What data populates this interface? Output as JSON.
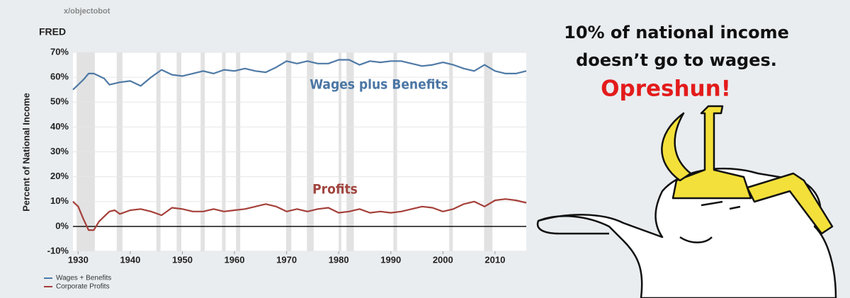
{
  "watermark": "x/objectobot",
  "chart_data": {
    "type": "line",
    "brand": "FRED",
    "y_label": "Percent of National Income",
    "x": [
      1929,
      1930,
      1931,
      1932,
      1933,
      1934,
      1935,
      1936,
      1937,
      1938,
      1940,
      1942,
      1944,
      1946,
      1948,
      1950,
      1952,
      1954,
      1956,
      1958,
      1960,
      1962,
      1964,
      1966,
      1968,
      1970,
      1972,
      1974,
      1976,
      1978,
      1980,
      1982,
      1984,
      1986,
      1988,
      1990,
      1992,
      1994,
      1996,
      1998,
      2000,
      2002,
      2004,
      2006,
      2008,
      2010,
      2012,
      2014,
      2016
    ],
    "series": [
      {
        "name": "Wages + Benefits",
        "color": "#4f7aa6",
        "values": [
          55,
          57,
          59,
          61.5,
          61.5,
          60.5,
          59.5,
          57,
          57.5,
          58,
          58.5,
          56.5,
          60,
          63,
          61,
          60.5,
          61.5,
          62.5,
          61.5,
          63,
          62.5,
          63.5,
          62.5,
          62,
          64,
          66.5,
          65.5,
          66.5,
          65.5,
          65.5,
          67,
          67,
          65,
          66.5,
          66,
          66.5,
          66.5,
          65.5,
          64.5,
          65,
          66,
          65,
          63.5,
          62.5,
          65,
          62.5,
          61.5,
          61.5,
          62.5
        ]
      },
      {
        "name": "Corporate Profits",
        "color": "#a5403a",
        "values": [
          10,
          8,
          3,
          -1.5,
          -1.5,
          2,
          4,
          6,
          6.5,
          5,
          6.5,
          7,
          6,
          4.5,
          7.5,
          7,
          6,
          6,
          7,
          6,
          6.5,
          7,
          8,
          9,
          8,
          6,
          7,
          6,
          7,
          7.5,
          5.5,
          6,
          7,
          5.5,
          6,
          5.5,
          6,
          7,
          8,
          7.5,
          6,
          7,
          9,
          10,
          8,
          10.5,
          11,
          10.5,
          9.5
        ]
      }
    ],
    "annotations": [
      {
        "text": "Wages plus Benefits",
        "color": "#4b76a4"
      },
      {
        "text": "Profits",
        "color": "#a0453f"
      }
    ],
    "recessions": [
      [
        1929.7,
        1933.2
      ],
      [
        1937.4,
        1938.5
      ],
      [
        1945,
        1945.8
      ],
      [
        1948.9,
        1949.8
      ],
      [
        1953.5,
        1954.3
      ],
      [
        1957.6,
        1958.3
      ],
      [
        1960.3,
        1961.1
      ],
      [
        1969.9,
        1970.9
      ],
      [
        1973.9,
        1975.2
      ],
      [
        1980,
        1980.5
      ],
      [
        1981.5,
        1982.9
      ],
      [
        1990.5,
        1991.2
      ],
      [
        2001.2,
        2001.9
      ],
      [
        2007.9,
        2009.5
      ]
    ],
    "recession_color": "#e2e2e2",
    "xlim": [
      1929,
      2016
    ],
    "xticks": [
      1930,
      1940,
      1950,
      1960,
      1970,
      1980,
      1990,
      2000,
      2010
    ],
    "ylim": [
      -10,
      70
    ],
    "yticks": [
      {
        "value": -10,
        "label": "-10%"
      },
      {
        "value": 0,
        "label": "0%"
      },
      {
        "value": 10,
        "label": "10%"
      },
      {
        "value": 20,
        "label": "20%"
      },
      {
        "value": 30,
        "label": "30%"
      },
      {
        "value": 40,
        "label": "40%"
      },
      {
        "value": 50,
        "label": "50%"
      },
      {
        "value": 60,
        "label": "60%"
      },
      {
        "value": 70,
        "label": "70%"
      }
    ],
    "grid": true,
    "zero_line": true,
    "legend": "bottom-left"
  },
  "meme": {
    "caption": [
      "10% of national income",
      "doesn’t go to wages."
    ],
    "punchline": "Opreshun!",
    "punchline_color": "#e31b1b"
  }
}
